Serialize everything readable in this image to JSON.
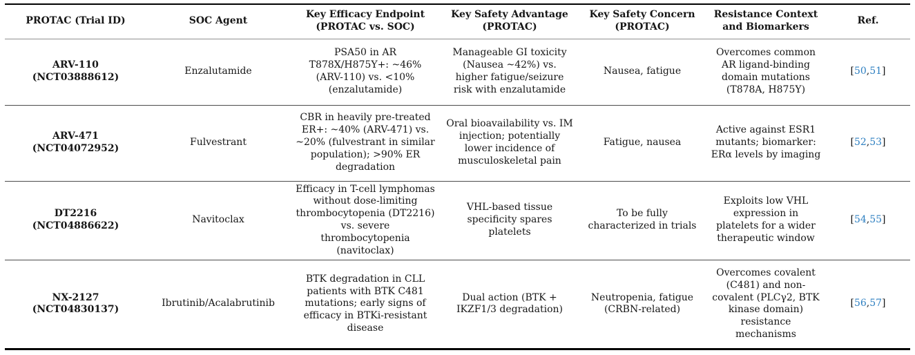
{
  "colors": {
    "link_blue": "#2d7fc1",
    "text": "#161616"
  },
  "table": {
    "headers": [
      {
        "line1": "PROTAC (Trial ID)",
        "line2": ""
      },
      {
        "line1": "SOC Agent",
        "line2": ""
      },
      {
        "line1": "Key Efficacy Endpoint",
        "line2": "(PROTAC vs. SOC)"
      },
      {
        "line1": "Key Safety Advantage",
        "line2": "(PROTAC)"
      },
      {
        "line1": "Key Safety Concern",
        "line2": "(PROTAC)"
      },
      {
        "line1": "Resistance Context",
        "line2": "and Biomarkers"
      },
      {
        "line1": "Ref.",
        "line2": ""
      }
    ],
    "ref_fmt": {
      "open": "[",
      "sep": ",",
      "close": "]"
    },
    "rows": [
      {
        "protac": "ARV-110",
        "trial": "(NCT03888612)",
        "soc": "Enzalutamide",
        "efficacy": "PSA50 in AR T878X/H875Y+: ~46% (ARV-110) vs. <10% (enzalutamide)",
        "advantage": "Manageable GI toxicity (Nausea ~42%) vs. higher fatigue/seizure risk with enzalutamide",
        "concern": "Nausea, fatigue",
        "resistance": "Overcomes common AR ligand-binding domain mutations (T878A, H875Y)",
        "refs": [
          "50",
          "51"
        ]
      },
      {
        "protac": "ARV-471",
        "trial": "(NCT04072952)",
        "soc": "Fulvestrant",
        "efficacy": "CBR in heavily pre-treated ER+: ~40% (ARV-471) vs. ~20% (fulvestrant in similar population); >90% ER degradation",
        "advantage": "Oral bioavailability vs. IM injection; potentially lower incidence of musculoskeletal pain",
        "concern": "Fatigue, nausea",
        "resistance": "Active against ESR1 mutants; biomarker: ERα levels by imaging",
        "refs": [
          "52",
          "53"
        ]
      },
      {
        "protac": "DT2216",
        "trial": "(NCT04886622)",
        "soc": "Navitoclax",
        "efficacy": "Efficacy in T-cell lymphomas without dose-limiting thrombocytopenia (DT2216) vs. severe thrombocytopenia (navitoclax)",
        "advantage": "VHL-based tissue specificity spares platelets",
        "concern": "To be fully characterized in trials",
        "resistance": "Exploits low VHL expression in platelets for a wider therapeutic window",
        "refs": [
          "54",
          "55"
        ]
      },
      {
        "protac": "NX-2127",
        "trial": "(NCT04830137)",
        "soc": "Ibrutinib/Acalabrutinib",
        "efficacy": "BTK degradation in CLL patients with BTK C481 mutations; early signs of efficacy in BTKi-resistant disease",
        "advantage": "Dual action (BTK + IKZF1/3 degradation)",
        "concern": "Neutropenia, fatigue (CRBN-related)",
        "resistance": "Overcomes covalent (C481) and non-covalent (PLCγ2, BTK kinase domain) resistance mechanisms",
        "refs": [
          "56",
          "57"
        ]
      }
    ]
  }
}
